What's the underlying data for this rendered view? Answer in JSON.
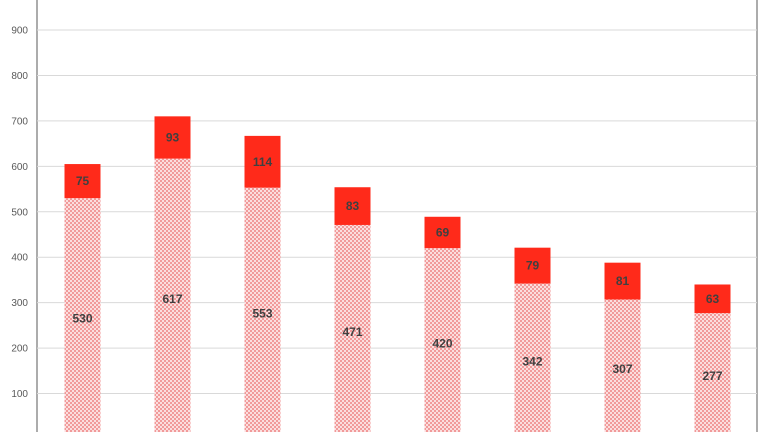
{
  "chart_data": {
    "type": "bar",
    "stacked": true,
    "categories": [
      "",
      "",
      "",
      "",
      "",
      "",
      "",
      ""
    ],
    "series": [
      {
        "values": [
          530,
          617,
          553,
          471,
          420,
          342,
          307,
          277
        ],
        "color": "#f4a3a3",
        "pattern": "checker"
      },
      {
        "values": [
          75,
          93,
          114,
          83,
          69,
          79,
          81,
          63
        ],
        "color": "#ff2a1a"
      }
    ],
    "y_ticks": [
      "100",
      "200",
      "300",
      "400",
      "500",
      "600",
      "700",
      "800",
      "900"
    ],
    "ylim": [
      0,
      950
    ],
    "grid": true,
    "legend": "none"
  }
}
